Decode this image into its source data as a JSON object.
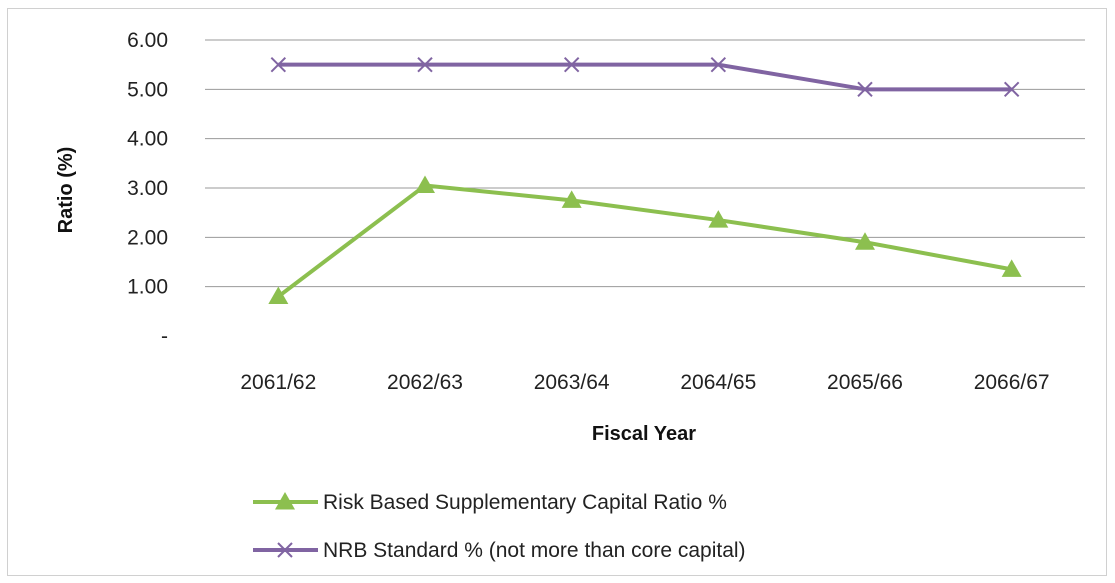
{
  "chart_data": {
    "type": "line",
    "title": "",
    "xlabel": "Fiscal Year",
    "ylabel": "Ratio (%)",
    "categories": [
      "2061/62",
      "2062/63",
      "2063/64",
      "2064/65",
      "2065/66",
      "2066/67"
    ],
    "ylim": [
      0,
      6
    ],
    "yticks": [
      0,
      1,
      2,
      3,
      4,
      5,
      6
    ],
    "ytick_labels": [
      "-",
      "1.00",
      "2.00",
      "3.00",
      "4.00",
      "5.00",
      "6.00"
    ],
    "grid": true,
    "legend_position": "bottom",
    "series": [
      {
        "name": "Risk Based Supplementary Capital Ratio %",
        "values": [
          0.8,
          3.05,
          2.75,
          2.35,
          1.9,
          1.35
        ],
        "color": "#8cbf4f",
        "marker": "triangle"
      },
      {
        "name": "NRB Standard % (not more than core capital)",
        "values": [
          5.5,
          5.5,
          5.5,
          5.5,
          5.0,
          5.0
        ],
        "color": "#8064a2",
        "marker": "x"
      }
    ]
  }
}
